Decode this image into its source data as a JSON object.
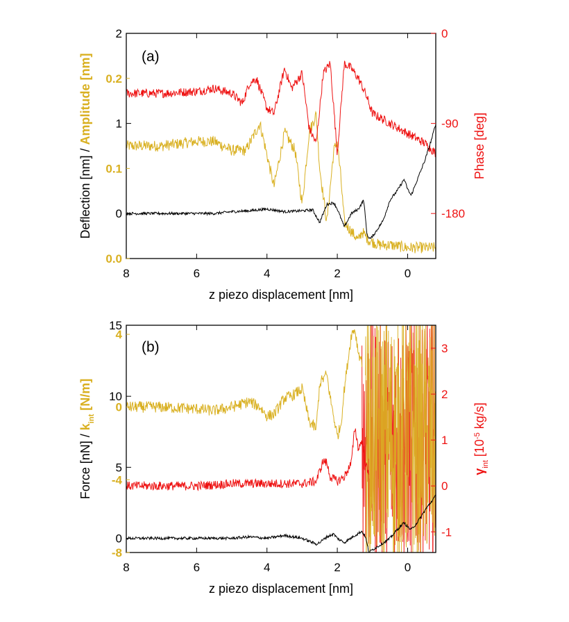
{
  "colors": {
    "black": "#000000",
    "gold": "#D9B021",
    "red": "#EE1111"
  },
  "chart_data": [
    {
      "type": "line",
      "panel_label": "(a)",
      "xlabel": "z piezo displacement [nm]",
      "xlim": [
        8,
        -0.8
      ],
      "x_ticks": [
        "8",
        "6",
        "4",
        "2",
        "0"
      ],
      "y_left_black": {
        "ylim": [
          -0.5,
          2
        ],
        "ticks": [
          "0",
          "1",
          "2"
        ]
      },
      "y_left_gold": {
        "ylim": [
          0.0,
          0.25
        ],
        "ticks": [
          "0.0",
          "0.1",
          "0.2"
        ]
      },
      "ylabel_parts": [
        {
          "text": "Deflection [nm] / ",
          "color": "black"
        },
        {
          "text": "Amplitude [nm]",
          "color": "gold",
          "bold": true
        }
      ],
      "y_right": {
        "ylim": [
          -225,
          0
        ],
        "ticks": [
          "0",
          "-90",
          "-180"
        ],
        "label": "Phase [deg]"
      },
      "series": [
        {
          "color": "black",
          "axis": "left_black",
          "x": [
            8.0,
            7.5,
            7.0,
            6.5,
            6.0,
            5.5,
            5.0,
            4.5,
            4.0,
            3.5,
            3.0,
            2.7,
            2.5,
            2.3,
            2.1,
            2.0,
            1.8,
            1.6,
            1.4,
            1.25,
            1.15,
            1.05,
            0.9,
            0.7,
            0.5,
            0.3,
            0.1,
            0.0,
            -0.1,
            -0.3,
            -0.5,
            -0.7,
            -0.8
          ],
          "values": [
            0.0,
            0.0,
            0.0,
            0.0,
            0.0,
            0.0,
            0.02,
            0.03,
            0.05,
            0.02,
            0.03,
            0.04,
            -0.1,
            0.1,
            0.12,
            0.05,
            -0.15,
            0.0,
            0.05,
            0.15,
            -0.25,
            -0.28,
            -0.2,
            -0.08,
            0.15,
            0.25,
            0.38,
            0.27,
            0.2,
            0.4,
            0.6,
            0.85,
            1.0
          ]
        },
        {
          "color": "gold",
          "axis": "left_gold",
          "x": [
            8.0,
            7.0,
            6.0,
            5.5,
            5.0,
            4.6,
            4.2,
            4.0,
            3.8,
            3.5,
            3.2,
            3.0,
            2.8,
            2.6,
            2.5,
            2.3,
            2.1,
            2.0,
            1.9,
            1.8,
            1.6,
            1.4,
            1.3,
            1.1,
            0.8,
            0.5,
            0.0,
            -0.5,
            -0.8
          ],
          "values": [
            0.125,
            0.125,
            0.13,
            0.13,
            0.12,
            0.12,
            0.15,
            0.115,
            0.08,
            0.14,
            0.12,
            0.06,
            0.14,
            0.16,
            0.1,
            0.04,
            0.12,
            0.13,
            0.09,
            0.04,
            0.03,
            0.02,
            0.03,
            0.02,
            0.015,
            0.015,
            0.012,
            0.012,
            0.012
          ]
        },
        {
          "color": "red",
          "axis": "right",
          "x": [
            8.0,
            7.0,
            6.0,
            5.5,
            5.0,
            4.7,
            4.5,
            4.3,
            4.0,
            3.8,
            3.5,
            3.3,
            3.0,
            2.8,
            2.6,
            2.4,
            2.2,
            2.0,
            1.8,
            1.6,
            1.4,
            1.2,
            1.0,
            0.5,
            0.0,
            -0.5,
            -0.8
          ],
          "values": [
            -60,
            -60,
            -58,
            -55,
            -60,
            -70,
            -50,
            -45,
            -75,
            -80,
            -35,
            -55,
            -40,
            -95,
            -110,
            -40,
            -30,
            -120,
            -30,
            -35,
            -45,
            -60,
            -80,
            -90,
            -100,
            -110,
            -120
          ]
        }
      ]
    },
    {
      "type": "line",
      "panel_label": "(b)",
      "xlabel": "z piezo displacement [nm]",
      "xlim": [
        8,
        -0.8
      ],
      "x_ticks": [
        "8",
        "6",
        "4",
        "2",
        "0"
      ],
      "y_left_black": {
        "ylim": [
          -1,
          15
        ],
        "ticks": [
          "0",
          "5",
          "10",
          "15"
        ]
      },
      "y_left_gold": {
        "ylim": [
          -8,
          4.5
        ],
        "ticks": [
          "-8",
          "-4",
          "0",
          "4"
        ]
      },
      "ylabel_parts": [
        {
          "text": "Force [nN] / ",
          "color": "black"
        },
        {
          "text": "k",
          "color": "gold",
          "bold": true
        },
        {
          "text": "int",
          "color": "gold",
          "bold": true,
          "sub": true
        },
        {
          "text": " [N/m]",
          "color": "gold",
          "bold": true
        }
      ],
      "y_right": {
        "ylim": [
          -1.45,
          3.5
        ],
        "ticks": [
          "3",
          "2",
          "1",
          "0",
          "-1"
        ]
      },
      "ylabel_right_parts": [
        {
          "text": "γ",
          "bold": true
        },
        {
          "text": "int",
          "sub": true
        },
        {
          "text": " [10"
        },
        {
          "text": "-5",
          "sup": true
        },
        {
          "text": " kg/s]"
        }
      ],
      "series": [
        {
          "color": "black",
          "axis": "left_black",
          "x": [
            8.0,
            7.0,
            6.0,
            5.0,
            4.5,
            4.0,
            3.5,
            3.0,
            2.8,
            2.6,
            2.5,
            2.3,
            2.1,
            2.0,
            1.8,
            1.5,
            1.3,
            1.2,
            1.1,
            1.0,
            0.8,
            0.5,
            0.3,
            0.1,
            0.0,
            -0.1,
            -0.3,
            -0.5,
            -0.8
          ],
          "values": [
            0.0,
            0.0,
            0.0,
            0.0,
            0.1,
            0.0,
            0.2,
            0.0,
            -0.2,
            -0.4,
            -0.3,
            0.1,
            0.3,
            0.0,
            -0.3,
            0.2,
            0.5,
            0.1,
            -1.0,
            -0.8,
            -0.5,
            0.0,
            0.6,
            1.1,
            0.8,
            0.6,
            1.2,
            2.0,
            3.0
          ]
        },
        {
          "color": "gold",
          "axis": "left_gold",
          "x": [
            8.0,
            7.0,
            6.0,
            5.5,
            5.0,
            4.5,
            4.2,
            4.0,
            3.8,
            3.5,
            3.3,
            3.0,
            2.8,
            2.6,
            2.5,
            2.3,
            2.2,
            2.0,
            1.9,
            1.8,
            1.6,
            1.5,
            1.4,
            1.3
          ],
          "values": [
            0.0,
            0.0,
            -0.1,
            -0.2,
            0.0,
            0.3,
            0.0,
            -0.5,
            -0.4,
            0.5,
            0.6,
            1.0,
            -0.8,
            -1.2,
            1.3,
            1.8,
            0.5,
            -1.6,
            -1.0,
            1.0,
            4.0,
            4.3,
            3.0,
            2.5
          ]
        },
        {
          "color": "red",
          "axis": "right",
          "x": [
            8.0,
            7.0,
            6.0,
            5.0,
            4.0,
            3.0,
            2.6,
            2.4,
            2.3,
            2.2,
            2.0,
            1.8,
            1.6,
            1.5,
            1.4,
            1.3,
            1.2,
            1.1
          ],
          "values": [
            0.0,
            0.0,
            0.0,
            0.05,
            0.05,
            0.05,
            0.1,
            0.55,
            0.5,
            0.2,
            0.1,
            0.2,
            0.5,
            1.3,
            0.8,
            1.0,
            0.5,
            0.2
          ]
        }
      ],
      "noise_bands": [
        {
          "color": "red",
          "axis": "right",
          "x_from": 1.3,
          "x_to": -0.8,
          "ylim": [
            -1.45,
            3.5
          ]
        },
        {
          "color": "gold",
          "axis": "left_gold",
          "x_from": 1.2,
          "x_to": -0.8,
          "ylim": [
            -8,
            4.5
          ]
        }
      ]
    }
  ]
}
